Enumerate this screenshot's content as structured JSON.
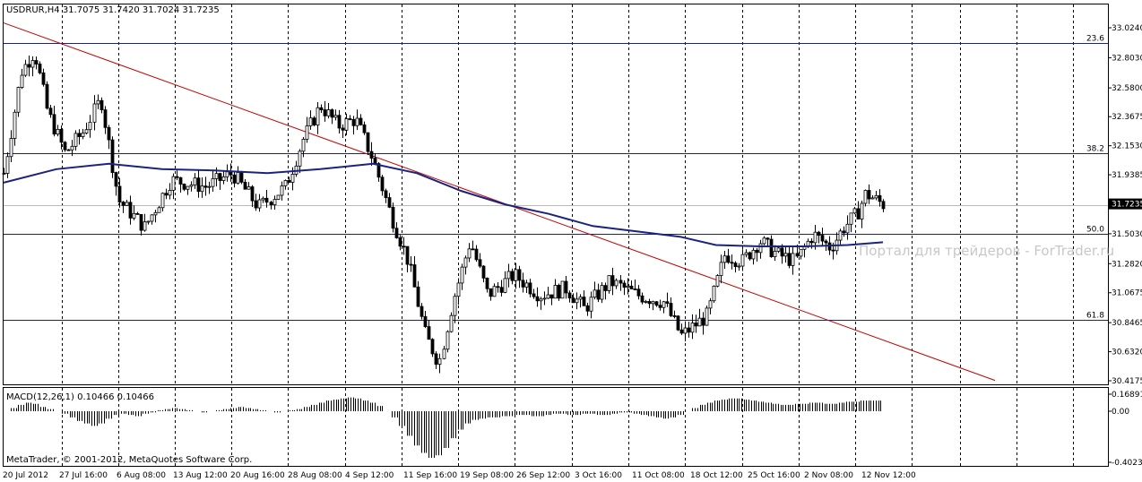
{
  "header": {
    "symbol_line": "USDRUR,H4  31.7075 31.7420 31.7024 31.7235"
  },
  "macd_header": "MACD(12,26,1) 0.10466 0.10466",
  "copyright": "MetaTrader, © 2001-2012, MetaQuotes Software Corp.",
  "watermark": "Портал для трейдеров - ForTrader.ru",
  "colors": {
    "background": "#ffffff",
    "candle": "#000000",
    "moving_average": "#1a237e",
    "trendline": "#cc0000",
    "fib_line": "#1a237e",
    "grid": "#000000",
    "current_price_box": "#000000"
  },
  "chart_data": [
    {
      "type": "candlestick",
      "title": "USDRUR,H4",
      "ylim": [
        30.4175,
        33.1
      ],
      "y_ticks": [
        "33.0240",
        "32.8030",
        "32.5800",
        "32.3675",
        "32.1530",
        "31.9385",
        "31.7235",
        "31.5030",
        "31.2820",
        "31.0675",
        "30.8465",
        "30.6320",
        "30.4175"
      ],
      "x_ticks": [
        "20 Jul 2012",
        "27 Jul 16:00",
        "6 Aug 08:00",
        "13 Aug 12:00",
        "20 Aug 16:00",
        "28 Aug 08:00",
        "4 Sep 12:00",
        "11 Sep 16:00",
        "19 Sep 08:00",
        "26 Sep 12:00",
        "3 Oct 16:00",
        "11 Oct 08:00",
        "18 Oct 12:00",
        "25 Oct 16:00",
        "2 Nov 08:00",
        "12 Nov 12:00"
      ],
      "current_price": "31.7235",
      "fibonacci_levels": [
        {
          "label": "23.6",
          "value": 32.91
        },
        {
          "label": "38.2",
          "value": 32.1
        },
        {
          "label": "50.0",
          "value": 31.5
        },
        {
          "label": "61.8",
          "value": 30.87
        }
      ],
      "trendline": {
        "from": {
          "x": 0,
          "y": 33.06
        },
        "to": {
          "x": 1,
          "y": 30.42
        }
      },
      "grid": true,
      "key_closes": [
        {
          "x": 0.0,
          "y": 31.95
        },
        {
          "x": 0.02,
          "y": 32.7
        },
        {
          "x": 0.035,
          "y": 32.85
        },
        {
          "x": 0.05,
          "y": 32.4
        },
        {
          "x": 0.07,
          "y": 32.1
        },
        {
          "x": 0.09,
          "y": 32.25
        },
        {
          "x": 0.11,
          "y": 32.5
        },
        {
          "x": 0.13,
          "y": 31.75
        },
        {
          "x": 0.16,
          "y": 31.55
        },
        {
          "x": 0.19,
          "y": 31.9
        },
        {
          "x": 0.23,
          "y": 31.85
        },
        {
          "x": 0.26,
          "y": 31.95
        },
        {
          "x": 0.29,
          "y": 31.7
        },
        {
          "x": 0.32,
          "y": 31.85
        },
        {
          "x": 0.34,
          "y": 32.2
        },
        {
          "x": 0.36,
          "y": 32.45
        },
        {
          "x": 0.38,
          "y": 32.3
        },
        {
          "x": 0.4,
          "y": 32.35
        },
        {
          "x": 0.42,
          "y": 32.05
        },
        {
          "x": 0.44,
          "y": 31.65
        },
        {
          "x": 0.46,
          "y": 31.3
        },
        {
          "x": 0.48,
          "y": 30.75
        },
        {
          "x": 0.495,
          "y": 30.55
        },
        {
          "x": 0.51,
          "y": 31.0
        },
        {
          "x": 0.53,
          "y": 31.45
        },
        {
          "x": 0.55,
          "y": 31.05
        },
        {
          "x": 0.58,
          "y": 31.2
        },
        {
          "x": 0.61,
          "y": 31.05
        },
        {
          "x": 0.64,
          "y": 31.1
        },
        {
          "x": 0.66,
          "y": 30.95
        },
        {
          "x": 0.69,
          "y": 31.15
        },
        {
          "x": 0.72,
          "y": 31.05
        },
        {
          "x": 0.75,
          "y": 31.0
        },
        {
          "x": 0.77,
          "y": 30.75
        },
        {
          "x": 0.8,
          "y": 30.9
        },
        {
          "x": 0.82,
          "y": 31.35
        },
        {
          "x": 0.84,
          "y": 31.3
        },
        {
          "x": 0.86,
          "y": 31.45
        },
        {
          "x": 0.88,
          "y": 31.35
        },
        {
          "x": 0.9,
          "y": 31.3
        },
        {
          "x": 0.92,
          "y": 31.5
        },
        {
          "x": 0.94,
          "y": 31.4
        },
        {
          "x": 0.955,
          "y": 31.55
        },
        {
          "x": 0.97,
          "y": 31.65
        },
        {
          "x": 0.98,
          "y": 31.8
        },
        {
          "x": 1.0,
          "y": 31.72
        }
      ],
      "moving_average": [
        {
          "x": 0.0,
          "y": 31.88
        },
        {
          "x": 0.06,
          "y": 31.98
        },
        {
          "x": 0.12,
          "y": 32.02
        },
        {
          "x": 0.18,
          "y": 31.98
        },
        {
          "x": 0.24,
          "y": 31.97
        },
        {
          "x": 0.3,
          "y": 31.95
        },
        {
          "x": 0.36,
          "y": 31.98
        },
        {
          "x": 0.42,
          "y": 32.02
        },
        {
          "x": 0.47,
          "y": 31.95
        },
        {
          "x": 0.52,
          "y": 31.82
        },
        {
          "x": 0.57,
          "y": 31.72
        },
        {
          "x": 0.62,
          "y": 31.65
        },
        {
          "x": 0.67,
          "y": 31.56
        },
        {
          "x": 0.72,
          "y": 31.52
        },
        {
          "x": 0.77,
          "y": 31.48
        },
        {
          "x": 0.81,
          "y": 31.42
        },
        {
          "x": 0.86,
          "y": 31.41
        },
        {
          "x": 0.91,
          "y": 31.41
        },
        {
          "x": 0.96,
          "y": 31.42
        },
        {
          "x": 1.0,
          "y": 31.44
        }
      ]
    },
    {
      "type": "bar",
      "title": "MACD(12,26,1)",
      "ylim": [
        -0.40234,
        0.16891
      ],
      "y_ticks": [
        "0.16891",
        "0.00",
        "-0.40234"
      ],
      "series": [
        {
          "name": "MACD",
          "values": [
            0.0,
            0.03,
            0.06,
            0.08,
            0.07,
            0.04,
            0.02,
            0.0,
            -0.02,
            -0.05,
            -0.08,
            -0.1,
            -0.12,
            -0.1,
            -0.06,
            -0.03,
            -0.02,
            -0.03,
            -0.04,
            -0.02,
            -0.01,
            0.01,
            0.02,
            0.03,
            0.02,
            0.01,
            0.0,
            -0.01,
            0.0,
            0.01,
            0.02,
            0.03,
            0.04,
            0.03,
            0.02,
            0.01,
            0.0,
            -0.01,
            0.0,
            0.01,
            0.02,
            0.04,
            0.06,
            0.08,
            0.1,
            0.11,
            0.12,
            0.13,
            0.12,
            0.1,
            0.08,
            0.05,
            0.0,
            -0.05,
            -0.12,
            -0.2,
            -0.28,
            -0.34,
            -0.38,
            -0.36,
            -0.3,
            -0.22,
            -0.15,
            -0.1,
            -0.07,
            -0.06,
            -0.05,
            -0.05,
            -0.04,
            -0.04,
            -0.03,
            -0.03,
            -0.04,
            -0.04,
            -0.03,
            -0.02,
            -0.02,
            -0.03,
            -0.03,
            -0.02,
            -0.02,
            -0.03,
            -0.03,
            -0.02,
            -0.01,
            -0.01,
            -0.02,
            -0.03,
            -0.04,
            -0.05,
            -0.06,
            -0.05,
            -0.03,
            0.0,
            0.03,
            0.06,
            0.08,
            0.1,
            0.11,
            0.12,
            0.12,
            0.11,
            0.1,
            0.09,
            0.08,
            0.07,
            0.06,
            0.06,
            0.07,
            0.07,
            0.08,
            0.08,
            0.07,
            0.07,
            0.08,
            0.09,
            0.09,
            0.1,
            0.1,
            0.1
          ]
        }
      ]
    }
  ]
}
